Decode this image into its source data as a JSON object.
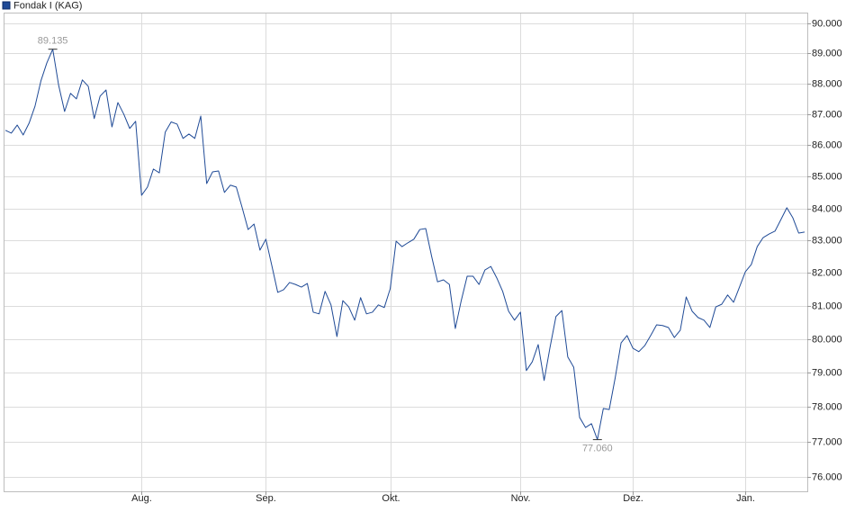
{
  "chart_data": {
    "type": "line",
    "log_scale": true,
    "grid": true,
    "legend": "top-left",
    "categories": [
      null,
      null,
      null,
      null,
      null,
      null,
      null,
      null,
      null,
      null,
      null,
      null,
      null,
      null,
      null,
      null,
      null,
      null,
      null,
      null,
      null,
      null,
      null,
      "Aug.",
      null,
      null,
      null,
      null,
      null,
      null,
      null,
      null,
      null,
      null,
      null,
      null,
      null,
      null,
      null,
      null,
      null,
      null,
      null,
      null,
      "Sep.",
      null,
      null,
      null,
      null,
      null,
      null,
      null,
      null,
      null,
      null,
      null,
      null,
      null,
      null,
      null,
      null,
      null,
      null,
      null,
      null,
      "Okt.",
      null,
      null,
      null,
      null,
      null,
      null,
      null,
      null,
      null,
      null,
      null,
      null,
      null,
      null,
      null,
      null,
      null,
      null,
      null,
      null,
      null,
      "Nov.",
      null,
      null,
      null,
      null,
      null,
      null,
      null,
      null,
      null,
      null,
      null,
      null,
      null,
      null,
      null,
      null,
      null,
      null,
      "Dez.",
      null,
      null,
      null,
      null,
      null,
      null,
      null,
      null,
      null,
      null,
      null,
      null,
      null,
      null,
      null,
      null,
      null,
      null,
      "Jan.",
      null,
      null,
      null,
      null,
      null,
      null,
      null,
      null,
      null,
      null
    ],
    "series": [
      {
        "name": "Fondak I (KAG)",
        "color": "#1f4a96",
        "values": [
          86.48,
          86.39,
          86.65,
          86.33,
          86.71,
          87.26,
          88.09,
          88.68,
          89.135,
          87.94,
          87.09,
          87.68,
          87.5,
          88.12,
          87.91,
          86.86,
          87.59,
          87.79,
          86.59,
          87.38,
          87.0,
          86.54,
          86.77,
          84.41,
          84.67,
          85.24,
          85.12,
          86.42,
          86.75,
          86.68,
          86.22,
          86.36,
          86.22,
          86.94,
          84.78,
          85.15,
          85.18,
          84.5,
          84.73,
          84.67,
          84.02,
          83.34,
          83.51,
          82.7,
          83.04,
          82.23,
          81.41,
          81.49,
          81.71,
          81.65,
          81.57,
          81.68,
          80.81,
          80.76,
          81.44,
          81.03,
          80.08,
          81.16,
          80.97,
          80.57,
          81.25,
          80.76,
          80.81,
          81.03,
          80.95,
          81.52,
          82.98,
          82.81,
          82.93,
          83.04,
          83.34,
          83.37,
          82.51,
          81.73,
          81.79,
          81.65,
          80.32,
          81.16,
          81.9,
          81.9,
          81.65,
          82.09,
          82.2,
          81.85,
          81.44,
          80.84,
          80.57,
          80.81,
          79.07,
          79.33,
          79.84,
          78.78,
          79.76,
          80.68,
          80.86,
          79.47,
          79.17,
          77.7,
          77.41,
          77.52,
          77.06,
          77.96,
          77.93,
          78.85,
          79.89,
          80.11,
          79.73,
          79.63,
          79.81,
          80.11,
          80.43,
          80.41,
          80.35,
          80.05,
          80.27,
          81.27,
          80.84,
          80.65,
          80.57,
          80.35,
          80.97,
          81.05,
          81.33,
          81.11,
          81.57,
          82.04,
          82.26,
          82.81,
          83.09,
          83.2,
          83.29,
          83.65,
          84.02,
          83.71,
          83.23,
          83.26
        ],
        "value_labels": [
          null,
          null,
          null,
          null,
          null,
          null,
          null,
          null,
          "89.135",
          null,
          null,
          null,
          null,
          null,
          null,
          null,
          null,
          null,
          null,
          null,
          null,
          null,
          null,
          null,
          null,
          null,
          null,
          null,
          null,
          null,
          null,
          null,
          null,
          null,
          null,
          null,
          null,
          null,
          null,
          null,
          null,
          null,
          null,
          null,
          null,
          null,
          null,
          null,
          null,
          null,
          null,
          null,
          null,
          null,
          null,
          null,
          null,
          null,
          null,
          null,
          null,
          null,
          null,
          null,
          null,
          null,
          null,
          null,
          null,
          null,
          null,
          null,
          null,
          null,
          null,
          null,
          null,
          null,
          null,
          null,
          null,
          null,
          null,
          null,
          null,
          null,
          null,
          null,
          null,
          null,
          null,
          null,
          null,
          null,
          null,
          null,
          null,
          null,
          null,
          null,
          "77.060",
          null,
          null,
          null,
          null,
          null,
          null,
          null,
          null,
          null,
          null,
          null,
          null,
          null,
          null,
          null,
          null,
          null,
          null,
          null,
          null,
          null,
          null,
          null,
          null,
          null,
          null,
          null,
          null,
          null,
          null,
          null,
          null,
          null,
          null,
          null
        ]
      }
    ],
    "ylim": [
      75.59,
      90.36
    ],
    "yticks": [
      {
        "value": 76,
        "label": "76.000"
      },
      {
        "value": 77,
        "label": "77.000"
      },
      {
        "value": 78,
        "label": "78.000"
      },
      {
        "value": 79,
        "label": "79.000"
      },
      {
        "value": 80,
        "label": "80.000"
      },
      {
        "value": 81,
        "label": "81.000"
      },
      {
        "value": 82,
        "label": "82.000"
      },
      {
        "value": 83,
        "label": "83.000"
      },
      {
        "value": 84,
        "label": "84.000"
      },
      {
        "value": 85,
        "label": "85.000"
      },
      {
        "value": 86,
        "label": "86.000"
      },
      {
        "value": 87,
        "label": "87.000"
      },
      {
        "value": 88,
        "label": "88.000"
      },
      {
        "value": 89,
        "label": "89.000"
      },
      {
        "value": 90,
        "label": "90.000"
      }
    ]
  }
}
